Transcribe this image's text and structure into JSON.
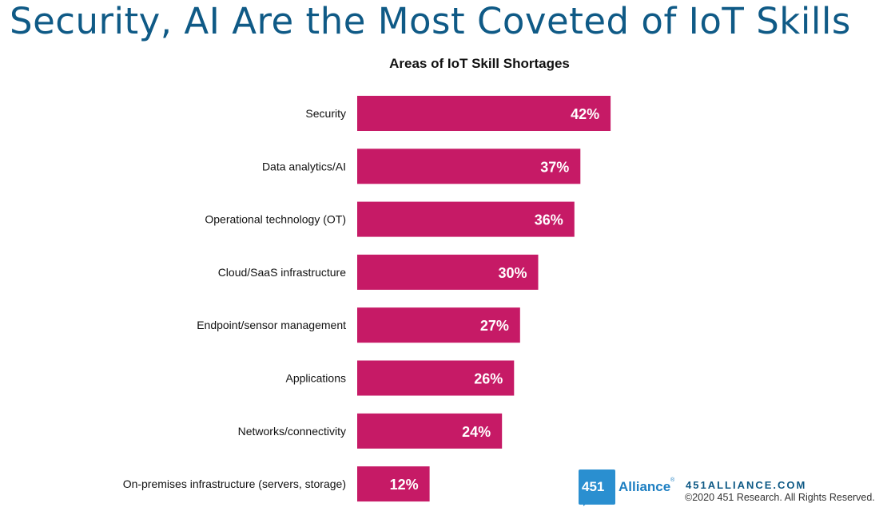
{
  "slide": {
    "title": "Security, AI Are the Most Coveted of IoT Skills"
  },
  "chart_data": {
    "type": "bar",
    "orientation": "horizontal",
    "title": "Areas of IoT Skill Shortages",
    "categories": [
      "Security",
      "Data analytics/AI",
      "Operational technology (OT)",
      "Cloud/SaaS infrastructure",
      "Endpoint/sensor management",
      "Applications",
      "Networks/connectivity",
      "On-premises infrastructure (servers, storage)"
    ],
    "values": [
      42,
      37,
      36,
      30,
      27,
      26,
      24,
      12
    ],
    "value_labels": [
      "42%",
      "37%",
      "36%",
      "30%",
      "27%",
      "26%",
      "24%",
      "12%"
    ],
    "unit": "%",
    "xlim": [
      0,
      100
    ],
    "bar_color": "#c61a66",
    "label_color": "#ffffff",
    "grid": false,
    "legend": "none"
  },
  "footer": {
    "logo_number": "451",
    "logo_word": "Alliance",
    "logo_reg": "®",
    "url": "451ALLIANCE.COM",
    "copyright": "©2020 451 Research. All Rights Reserved."
  },
  "colors": {
    "title": "#0f5a86",
    "logo_blue": "#2a8fd0"
  }
}
